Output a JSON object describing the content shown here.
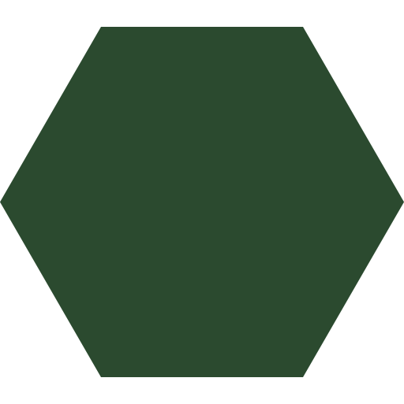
{
  "shape": {
    "kind": "hexagon",
    "icon": "hexagon-icon",
    "fill_color": "#2b4a2f",
    "background_color": "#ffffff"
  }
}
